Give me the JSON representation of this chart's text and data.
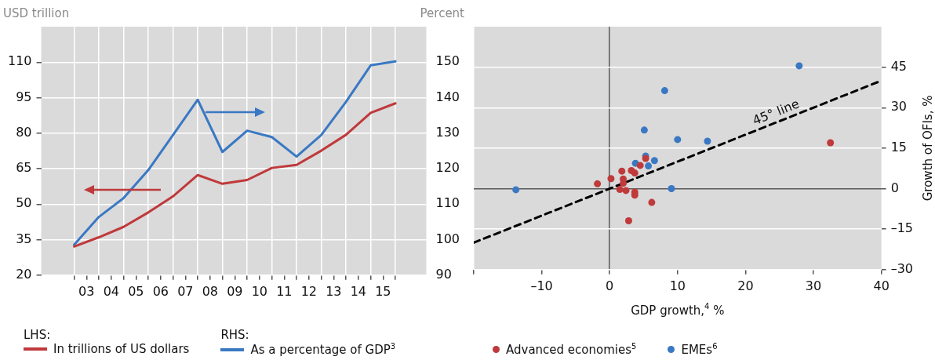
{
  "chart_data": [
    {
      "type": "line",
      "ylabel": "USD trillion",
      "y2label": "Percent",
      "x": [
        "2003",
        "2004",
        "2005",
        "2006",
        "2007",
        "2008",
        "2009",
        "2010",
        "2011",
        "2012",
        "2013",
        "2014",
        "2015",
        "2016"
      ],
      "series": [
        {
          "name": "In trillions of US dollars",
          "color": "#c0393b",
          "values": [
            32.1,
            36.0,
            40.4,
            46.5,
            53.3,
            62.3,
            58.6,
            60.2,
            65.3,
            66.6,
            72.6,
            79.3,
            88.6,
            92.6
          ]
        },
        {
          "name": "As a percentage of GDP$^{3}$",
          "color": "#3a78c3",
          "axis": "y2",
          "values": [
            98.6,
            106.4,
            111.7,
            119.6,
            129.5,
            139.4,
            124.7,
            130.7,
            128.9,
            123.4,
            129.5,
            138.8,
            149.1,
            150.2
          ]
        }
      ],
      "xlim": [
        "2001-09",
        "2017-04"
      ],
      "xticks": [
        {
          "value": "2003",
          "label": null
        },
        {
          "value": "2003-07",
          "label": "03"
        },
        {
          "value": "2004",
          "label": null
        },
        {
          "value": "2004-07",
          "label": "04"
        },
        {
          "value": "2005",
          "label": null
        },
        {
          "value": "2005-07",
          "label": "05"
        },
        {
          "value": "2006",
          "label": null
        },
        {
          "value": "2006-07",
          "label": "06"
        },
        {
          "value": "2007",
          "label": null
        },
        {
          "value": "2007-07",
          "label": "07"
        },
        {
          "value": "2008",
          "label": null
        },
        {
          "value": "2008-07",
          "label": "08"
        },
        {
          "value": "2009",
          "label": null
        },
        {
          "value": "2009-07",
          "label": "09"
        },
        {
          "value": "2010",
          "label": null
        },
        {
          "value": "2010-07",
          "label": "10"
        },
        {
          "value": "2011",
          "label": null
        },
        {
          "value": "2011-07",
          "label": "11"
        },
        {
          "value": "2012",
          "label": null
        },
        {
          "value": "2012-07",
          "label": "12"
        },
        {
          "value": "2013",
          "label": null
        },
        {
          "value": "2013-07",
          "label": "13"
        },
        {
          "value": "2014",
          "label": null
        },
        {
          "value": "2014-07",
          "label": "14"
        },
        {
          "value": "2015",
          "label": null
        },
        {
          "value": "2015-07",
          "label": "15"
        },
        {
          "value": "2016",
          "label": null
        }
      ],
      "ylim": [
        20,
        125
      ],
      "yticks": [
        20,
        35,
        50,
        65,
        80,
        95,
        110
      ],
      "y2lim": [
        90,
        160
      ],
      "y2ticks": [
        90,
        100,
        110,
        120,
        130,
        140,
        150
      ],
      "grid": true,
      "legend": "bottom",
      "annotations": [
        "LHS:",
        "RHS:"
      ]
    },
    {
      "type": "scatter",
      "xlabel": "GDP growth,$^{4}$ %",
      "y2label": "Growth of OFIs, %",
      "marker": "circle",
      "series": [
        {
          "name": "Advanced economies$^{5}$",
          "color": "#c0393b",
          "axis": "y2",
          "x": [
            32.5,
            5.3,
            4.5,
            1.8,
            3.2,
            3.7,
            0.2,
            2.0,
            2.0,
            -1.8,
            1.5,
            2.4,
            3.7,
            3.7,
            6.2,
            2.8
          ],
          "values": [
            17.0,
            11.2,
            8.6,
            6.5,
            6.7,
            5.8,
            3.7,
            3.6,
            2.0,
            1.8,
            -0.3,
            -0.7,
            -1.3,
            -2.4,
            -5.1,
            -11.9
          ]
        },
        {
          "name": "EMEs$^{6}$",
          "color": "#3a78c3",
          "axis": "y2",
          "x": [
            27.9,
            8.1,
            5.1,
            10.0,
            14.4,
            5.3,
            3.8,
            6.6,
            5.7,
            -13.8,
            9.1
          ],
          "values": [
            45.5,
            36.3,
            21.7,
            18.2,
            17.6,
            12.1,
            9.4,
            10.4,
            8.4,
            -0.4,
            0.0
          ]
        },
        {
          "type": "line",
          "color": "#000000",
          "axis": "y2",
          "line_style": "dashed",
          "marker": "none",
          "x": [
            -20,
            40
          ],
          "values": [
            -20,
            40
          ]
        }
      ],
      "xlim": [
        -20,
        40
      ],
      "xticks": [
        {
          "value": -20,
          "label": null
        },
        {
          "value": -10,
          "label": "–10"
        },
        0,
        10,
        20,
        30,
        40
      ],
      "y2lim": [
        -30,
        60
      ],
      "y2ticks": [
        {
          "value": -30,
          "label": "–30"
        },
        {
          "value": -15,
          "label": "–15"
        },
        0,
        15,
        30,
        45
      ],
      "grid": true,
      "legend": "bottom",
      "annotations": [
        "45° line"
      ]
    }
  ]
}
